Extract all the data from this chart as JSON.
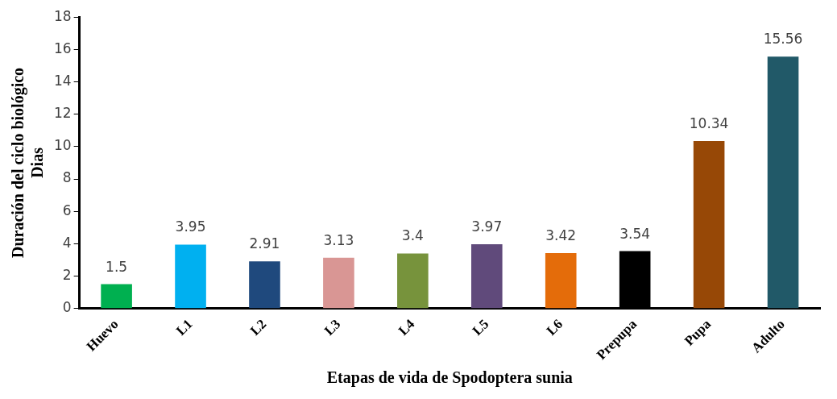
{
  "chart_data": {
    "type": "bar",
    "xlabel": "Etapas de vida de Spodoptera sunia",
    "ylabel": "Duración del ciclo biológico\nDias",
    "categories": [
      "Huevo",
      "L1",
      "L2",
      "L3",
      "L4",
      "L5",
      "L6",
      "Prepupa",
      "Pupa",
      "Adulto"
    ],
    "values": [
      1.5,
      3.95,
      2.91,
      3.13,
      3.4,
      3.97,
      3.42,
      3.54,
      10.34,
      15.56
    ],
    "colors": [
      "#00b050",
      "#00b0f0",
      "#1f497d",
      "#d99694",
      "#77933c",
      "#604a7b",
      "#e46c0a",
      "#000000",
      "#974806",
      "#215968"
    ],
    "ylim": [
      0,
      18
    ],
    "yticks": [
      0,
      2,
      4,
      6,
      8,
      10,
      12,
      14,
      16,
      18
    ],
    "grid": false,
    "legend": false,
    "data_labels": true
  }
}
